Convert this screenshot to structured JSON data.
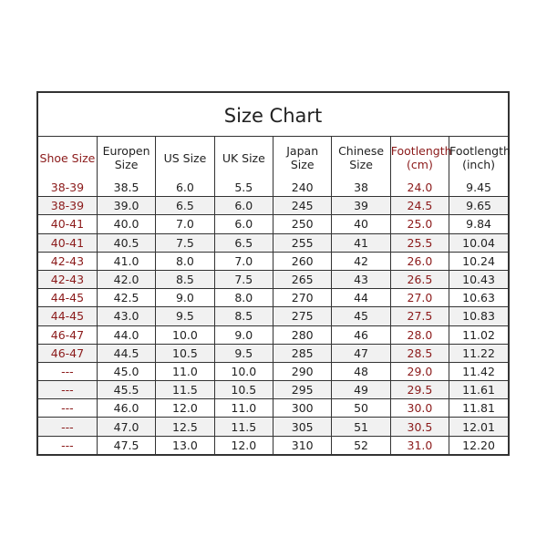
{
  "title": "Size Chart",
  "colors": {
    "highlight": "#8b1a1a",
    "text": "#222222",
    "alt_row": "#f1f1f1"
  },
  "chart_data": {
    "type": "table",
    "title": "Size Chart",
    "columns": [
      "Shoe Size",
      "Europen Size",
      "US Size",
      "UK Size",
      "Japan Size",
      "Chinese Size",
      "Footlength (cm)",
      "Footlength (inch)"
    ],
    "highlighted_columns": [
      "Shoe Size",
      "Footlength (cm)"
    ],
    "rows": [
      [
        "38-39",
        "38.5",
        "6.0",
        "5.5",
        "240",
        "38",
        "24.0",
        "9.45"
      ],
      [
        "38-39",
        "39.0",
        "6.5",
        "6.0",
        "245",
        "39",
        "24.5",
        "9.65"
      ],
      [
        "40-41",
        "40.0",
        "7.0",
        "6.0",
        "250",
        "40",
        "25.0",
        "9.84"
      ],
      [
        "40-41",
        "40.5",
        "7.5",
        "6.5",
        "255",
        "41",
        "25.5",
        "10.04"
      ],
      [
        "42-43",
        "41.0",
        "8.0",
        "7.0",
        "260",
        "42",
        "26.0",
        "10.24"
      ],
      [
        "42-43",
        "42.0",
        "8.5",
        "7.5",
        "265",
        "43",
        "26.5",
        "10.43"
      ],
      [
        "44-45",
        "42.5",
        "9.0",
        "8.0",
        "270",
        "44",
        "27.0",
        "10.63"
      ],
      [
        "44-45",
        "43.0",
        "9.5",
        "8.5",
        "275",
        "45",
        "27.5",
        "10.83"
      ],
      [
        "46-47",
        "44.0",
        "10.0",
        "9.0",
        "280",
        "46",
        "28.0",
        "11.02"
      ],
      [
        "46-47",
        "44.5",
        "10.5",
        "9.5",
        "285",
        "47",
        "28.5",
        "11.22"
      ],
      [
        "---",
        "45.0",
        "11.0",
        "10.0",
        "290",
        "48",
        "29.0",
        "11.42"
      ],
      [
        "---",
        "45.5",
        "11.5",
        "10.5",
        "295",
        "49",
        "29.5",
        "11.61"
      ],
      [
        "---",
        "46.0",
        "12.0",
        "11.0",
        "300",
        "50",
        "30.0",
        "11.81"
      ],
      [
        "---",
        "47.0",
        "12.5",
        "11.5",
        "305",
        "51",
        "30.5",
        "12.01"
      ],
      [
        "---",
        "47.5",
        "13.0",
        "12.0",
        "310",
        "52",
        "31.0",
        "12.20"
      ]
    ]
  }
}
